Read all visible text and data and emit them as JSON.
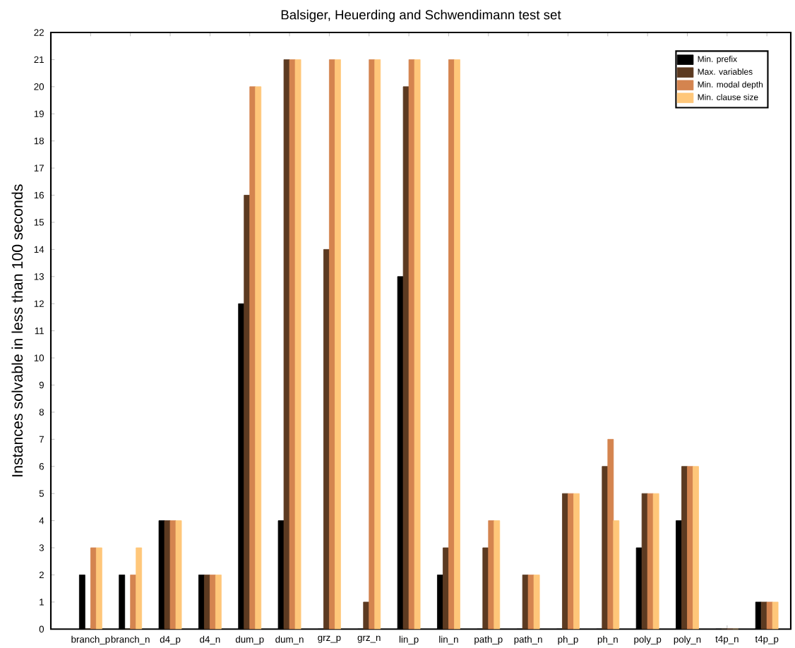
{
  "chart_data": {
    "type": "bar",
    "title": "Balsiger, Heuerding and Schwendimann test set",
    "ylabel": "Instances solvable in less than 100 seconds",
    "categories": [
      "branch_p",
      "branch_n",
      "d4_p",
      "d4_n",
      "dum_p",
      "dum_n",
      "grz_p",
      "grz_n",
      "lin_p",
      "lin_n",
      "path_p",
      "path_n",
      "ph_p",
      "ph_n",
      "poly_p",
      "poly_n",
      "t4p_n",
      "t4p_p"
    ],
    "series": [
      {
        "name": "Min. prefix",
        "color": "#000000",
        "values": [
          2,
          2,
          4,
          2,
          12,
          4,
          0,
          0,
          13,
          2,
          0,
          0,
          0,
          0,
          3,
          4,
          0,
          1
        ]
      },
      {
        "name": "Max. variables",
        "color": "#5c3a21",
        "values": [
          0,
          0,
          4,
          2,
          16,
          21,
          14,
          1,
          20,
          3,
          3,
          2,
          5,
          6,
          5,
          6,
          0,
          1
        ]
      },
      {
        "name": "Min. modal depth",
        "color": "#d4844f",
        "values": [
          3,
          2,
          4,
          2,
          20,
          21,
          21,
          21,
          21,
          21,
          4,
          2,
          5,
          7,
          5,
          6,
          0,
          1
        ]
      },
      {
        "name": "Min. clause size",
        "color": "#ffc77a",
        "values": [
          3,
          3,
          4,
          2,
          20,
          21,
          21,
          21,
          21,
          21,
          4,
          2,
          5,
          4,
          5,
          6,
          0,
          1
        ]
      }
    ],
    "ylim": [
      0,
      22
    ],
    "yticks": [
      0,
      1,
      2,
      3,
      4,
      5,
      6,
      7,
      8,
      9,
      10,
      11,
      12,
      13,
      14,
      15,
      16,
      17,
      18,
      19,
      20,
      21,
      22
    ],
    "legend": "top right"
  }
}
